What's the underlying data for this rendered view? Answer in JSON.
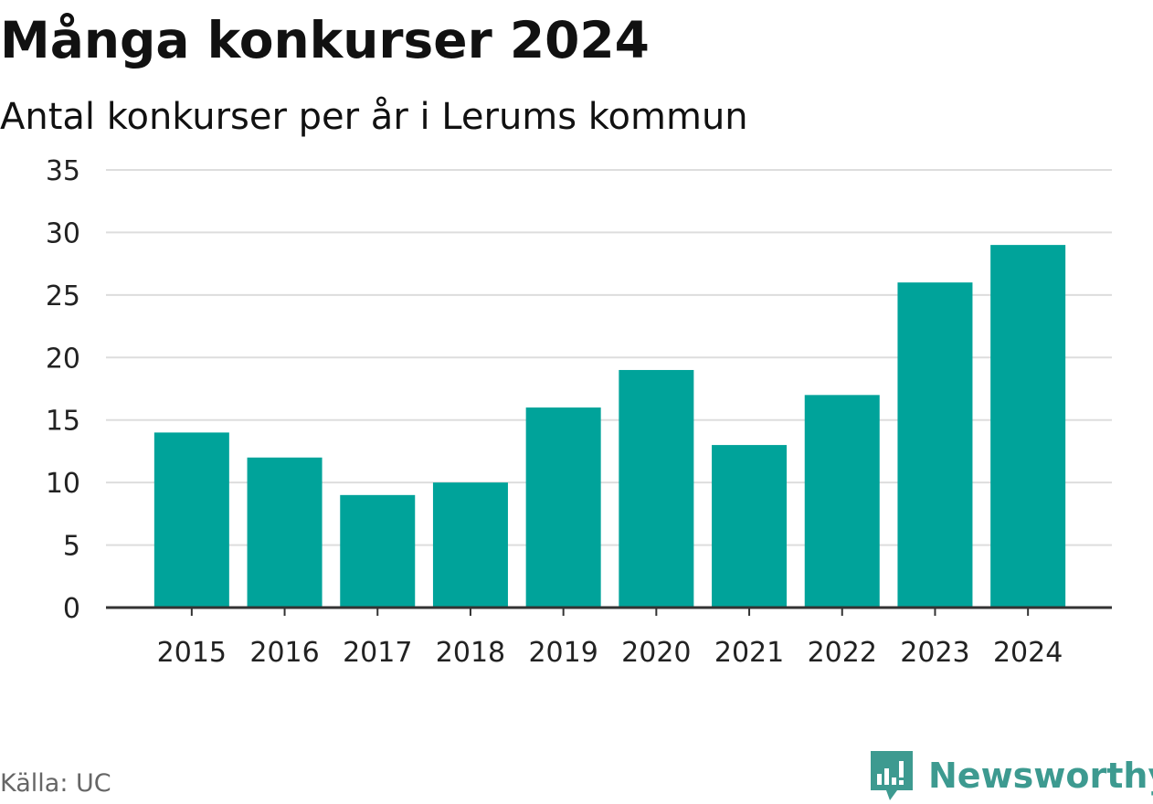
{
  "header": {
    "title": "Många konkurser 2024",
    "subtitle": "Antal konkurser per år i Lerums kommun"
  },
  "footer": {
    "source": "Källa: UC",
    "brand": "Newsworthy"
  },
  "colors": {
    "bar": "#00a39a",
    "grid": "#dddddd",
    "axis": "#333333",
    "brand": "#3d9a90"
  },
  "chart_data": {
    "type": "bar",
    "categories": [
      "2015",
      "2016",
      "2017",
      "2018",
      "2019",
      "2020",
      "2021",
      "2022",
      "2023",
      "2024"
    ],
    "values": [
      14,
      12,
      9,
      10,
      16,
      19,
      13,
      17,
      26,
      29
    ],
    "title": "Många konkurser 2024",
    "subtitle": "Antal konkurser per år i Lerums kommun",
    "xlabel": "",
    "ylabel": "",
    "ylim": [
      0,
      35
    ],
    "yticks": [
      0,
      5,
      10,
      15,
      20,
      25,
      30,
      35
    ],
    "grid": true,
    "legend": "none"
  }
}
